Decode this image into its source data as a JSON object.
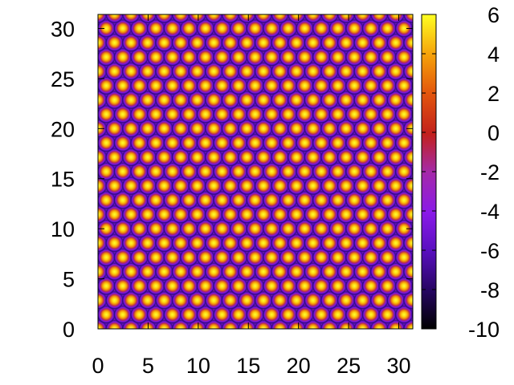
{
  "chart_data": {
    "type": "heatmap",
    "title": "",
    "xlabel": "",
    "ylabel": "",
    "xlim": [
      0,
      31.4
    ],
    "ylim": [
      0,
      31.4
    ],
    "zlim": [
      -10,
      6
    ],
    "x_ticks": [
      0,
      5,
      10,
      15,
      20,
      25,
      30
    ],
    "y_ticks": [
      0,
      5,
      10,
      15,
      20,
      25,
      30
    ],
    "colorbar_ticks": [
      -10,
      -8,
      -6,
      -4,
      -2,
      0,
      2,
      4,
      6
    ],
    "colormap": [
      "#000000",
      "#3a0a8c",
      "#7b16e8",
      "#a12ac0",
      "#c2201c",
      "#e3560c",
      "#f08a08",
      "#fbc80f",
      "#ffff22"
    ],
    "pattern": {
      "description_values": "hexagonal array of maxima",
      "lattice_spacing": 1.65,
      "peak_value": 6,
      "ring_value": -9,
      "background_value": -5.5,
      "grain_boundary_value": -1.5,
      "grain_regions": [
        {
          "center": [
            18.5,
            29
          ],
          "size": [
            13,
            5
          ]
        },
        {
          "center": [
            15.5,
            15.5
          ],
          "size": [
            31.4,
            1.2
          ]
        },
        {
          "center": [
            17,
            4
          ],
          "size": [
            14,
            7
          ]
        }
      ]
    },
    "grid": false,
    "legend": "none"
  }
}
